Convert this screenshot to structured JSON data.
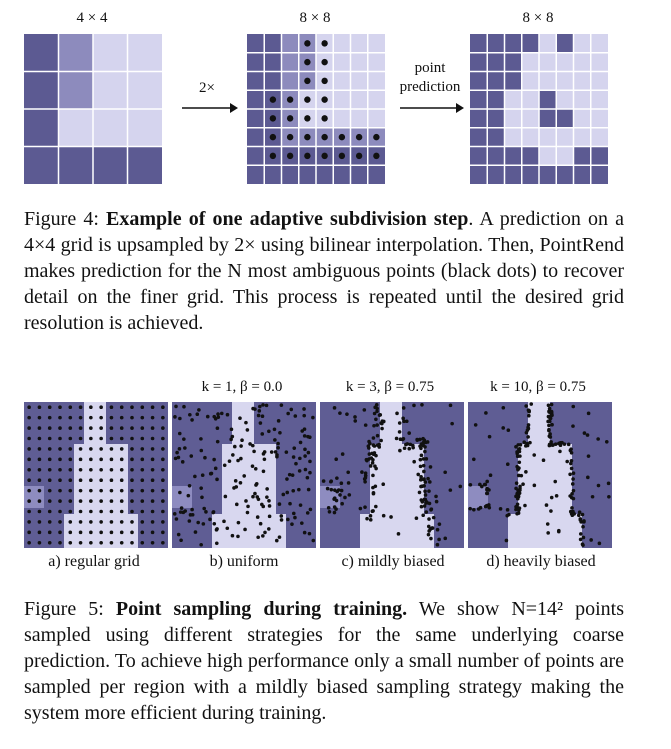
{
  "figure4": {
    "grid_labels": [
      "4 × 4",
      "8 × 8",
      "8 × 8"
    ],
    "arrow1_label": "2×",
    "arrow2_label_line1": "point",
    "arrow2_label_line2": "prediction",
    "caption_prefix": "Figure 4: ",
    "caption_bold": "Example of one adaptive subdivision step",
    "caption_rest": ". A prediction on a 4×4 grid is upsampled by 2× using bilinear interpolation. Then, PointRend makes prediction for the N most ambiguous points (black dots) to recover detail on the finer grid. This process is repeated until the desired grid resolution is achieved.",
    "colors": {
      "dark": "#5c5a92",
      "mid": "#8d8bbd",
      "light": "#d5d4ee",
      "grid_line": "#ffffff"
    },
    "coarse_grid": [
      [
        0,
        1,
        2,
        2
      ],
      [
        0,
        1,
        2,
        2
      ],
      [
        0,
        2,
        2,
        2
      ],
      [
        0,
        0,
        0,
        0
      ]
    ],
    "upsampled_grid": [
      [
        0,
        0,
        1,
        1,
        2,
        2,
        2,
        2
      ],
      [
        0,
        0,
        1,
        1,
        2,
        2,
        2,
        2
      ],
      [
        0,
        0,
        1,
        1,
        2,
        2,
        2,
        2
      ],
      [
        0,
        0,
        1,
        2,
        2,
        2,
        2,
        2
      ],
      [
        0,
        0,
        1,
        2,
        2,
        2,
        2,
        2
      ],
      [
        0,
        0,
        1,
        1,
        1,
        1,
        1,
        1
      ],
      [
        0,
        0,
        0,
        0,
        0,
        0,
        0,
        0
      ],
      [
        0,
        0,
        0,
        0,
        0,
        0,
        0,
        0
      ]
    ],
    "refined_grid": [
      [
        0,
        0,
        0,
        0,
        2,
        0,
        2,
        2
      ],
      [
        0,
        0,
        0,
        2,
        2,
        2,
        2,
        2
      ],
      [
        0,
        0,
        0,
        2,
        2,
        2,
        2,
        2
      ],
      [
        0,
        0,
        2,
        2,
        0,
        2,
        2,
        2
      ],
      [
        0,
        0,
        2,
        2,
        0,
        0,
        2,
        2
      ],
      [
        0,
        0,
        2,
        2,
        2,
        2,
        2,
        2
      ],
      [
        0,
        0,
        0,
        0,
        2,
        2,
        0,
        0
      ],
      [
        0,
        0,
        0,
        0,
        0,
        0,
        0,
        0
      ]
    ],
    "point_cells": [
      [
        0,
        3
      ],
      [
        0,
        4
      ],
      [
        1,
        3
      ],
      [
        1,
        4
      ],
      [
        2,
        3
      ],
      [
        2,
        4
      ],
      [
        3,
        1
      ],
      [
        3,
        2
      ],
      [
        3,
        3
      ],
      [
        3,
        4
      ],
      [
        4,
        1
      ],
      [
        4,
        2
      ],
      [
        4,
        3
      ],
      [
        4,
        4
      ],
      [
        5,
        1
      ],
      [
        5,
        2
      ],
      [
        5,
        3
      ],
      [
        5,
        4
      ],
      [
        5,
        5
      ],
      [
        5,
        6
      ],
      [
        5,
        7
      ],
      [
        6,
        1
      ],
      [
        6,
        2
      ],
      [
        6,
        3
      ],
      [
        6,
        4
      ],
      [
        6,
        5
      ],
      [
        6,
        6
      ],
      [
        6,
        7
      ]
    ]
  },
  "figure5": {
    "params": [
      "",
      "k = 1, β = 0.0",
      "k = 3, β = 0.75",
      "k = 10, β = 0.75"
    ],
    "panel_labels": [
      "a) regular grid",
      "b) uniform",
      "c) mildly biased",
      "d) heavily biased"
    ],
    "caption_prefix": "Figure 5: ",
    "caption_bold": "Point sampling during training.",
    "caption_rest": " We show N=14² points sampled using different strategies for the same underlying coarse prediction. To achieve high performance only a small number of points are sampled per region with a mildly biased sampling strategy making the system more efficient during training.",
    "colors": {
      "background": "#5f5d94",
      "shape": "#d8d7ef",
      "patch": "#8e8cc0",
      "dot": "#111111"
    }
  }
}
